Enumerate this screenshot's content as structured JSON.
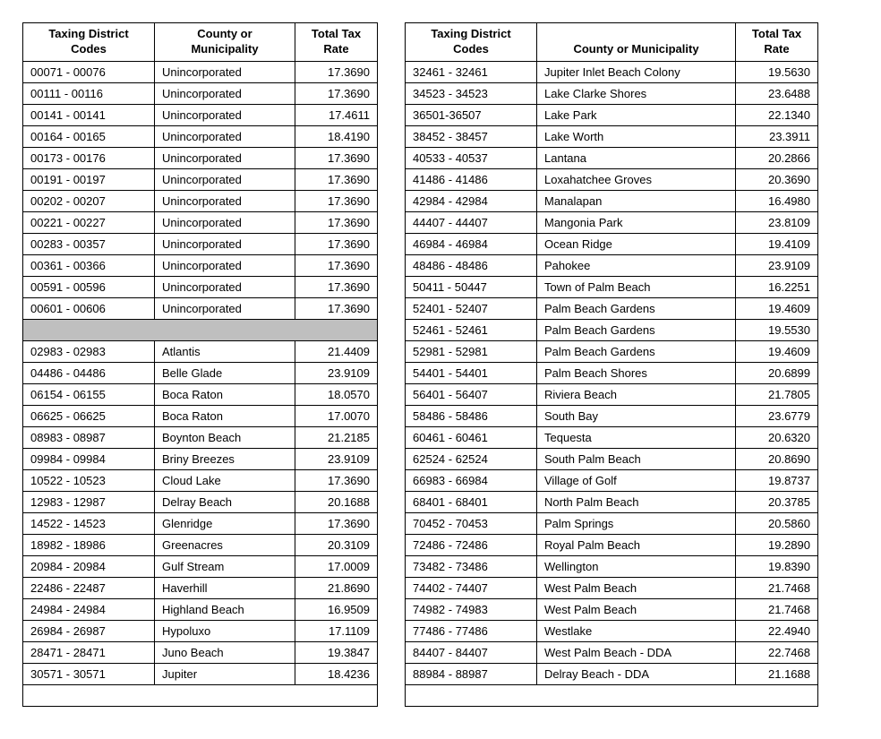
{
  "leftTable": {
    "headers": [
      "Taxing District Codes",
      "County or Municipality",
      "Total Tax Rate"
    ],
    "rows": [
      {
        "code": "00071 - 00076",
        "muni": "Unincorporated",
        "rate": "17.3690"
      },
      {
        "code": "00111 - 00116",
        "muni": "Unincorporated",
        "rate": "17.3690"
      },
      {
        "code": "00141 - 00141",
        "muni": "Unincorporated",
        "rate": "17.4611"
      },
      {
        "code": "00164 - 00165",
        "muni": "Unincorporated",
        "rate": "18.4190"
      },
      {
        "code": "00173 - 00176",
        "muni": "Unincorporated",
        "rate": "17.3690"
      },
      {
        "code": "00191 - 00197",
        "muni": "Unincorporated",
        "rate": "17.3690"
      },
      {
        "code": "00202 - 00207",
        "muni": "Unincorporated",
        "rate": "17.3690"
      },
      {
        "code": "00221 - 00227",
        "muni": "Unincorporated",
        "rate": "17.3690"
      },
      {
        "code": "00283 - 00357",
        "muni": "Unincorporated",
        "rate": "17.3690"
      },
      {
        "code": "00361 - 00366",
        "muni": "Unincorporated",
        "rate": "17.3690"
      },
      {
        "code": "00591 - 00596",
        "muni": "Unincorporated",
        "rate": "17.3690"
      },
      {
        "code": "00601 - 00606",
        "muni": "Unincorporated",
        "rate": "17.3690"
      }
    ],
    "rows2": [
      {
        "code": "02983 - 02983",
        "muni": "Atlantis",
        "rate": "21.4409"
      },
      {
        "code": "04486 - 04486",
        "muni": "Belle Glade",
        "rate": "23.9109"
      },
      {
        "code": "06154 - 06155",
        "muni": "Boca Raton",
        "rate": "18.0570"
      },
      {
        "code": "06625 - 06625",
        "muni": "Boca Raton",
        "rate": "17.0070"
      },
      {
        "code": "08983 - 08987",
        "muni": "Boynton Beach",
        "rate": "21.2185"
      },
      {
        "code": "09984 - 09984",
        "muni": "Briny Breezes",
        "rate": "23.9109"
      },
      {
        "code": "10522 - 10523",
        "muni": "Cloud Lake",
        "rate": "17.3690"
      },
      {
        "code": "12983 - 12987",
        "muni": "Delray Beach",
        "rate": "20.1688"
      },
      {
        "code": "14522 - 14523",
        "muni": "Glenridge",
        "rate": "17.3690"
      },
      {
        "code": "18982 - 18986",
        "muni": "Greenacres",
        "rate": "20.3109"
      },
      {
        "code": "20984 - 20984",
        "muni": "Gulf Stream",
        "rate": "17.0009"
      },
      {
        "code": "22486 - 22487",
        "muni": "Haverhill",
        "rate": "21.8690"
      },
      {
        "code": "24984 - 24984",
        "muni": "Highland Beach",
        "rate": "16.9509"
      },
      {
        "code": "26984 - 26987",
        "muni": "Hypoluxo",
        "rate": "17.1109"
      },
      {
        "code": "28471 - 28471",
        "muni": "Juno Beach",
        "rate": "19.3847"
      },
      {
        "code": "30571 - 30571",
        "muni": "Jupiter",
        "rate": "18.4236"
      }
    ]
  },
  "rightTable": {
    "headers": [
      "Taxing District Codes",
      "County or Municipality",
      "Total Tax Rate"
    ],
    "rows": [
      {
        "code": "32461 - 32461",
        "muni": "Jupiter Inlet Beach Colony",
        "rate": "19.5630"
      },
      {
        "code": "34523 - 34523",
        "muni": "Lake Clarke Shores",
        "rate": "23.6488"
      },
      {
        "code": "36501-36507",
        "muni": "Lake Park",
        "rate": "22.1340"
      },
      {
        "code": "38452 - 38457",
        "muni": "Lake Worth",
        "rate": "23.3911"
      },
      {
        "code": "40533 - 40537",
        "muni": "Lantana",
        "rate": "20.2866"
      },
      {
        "code": "41486 - 41486",
        "muni": "Loxahatchee Groves",
        "rate": "20.3690"
      },
      {
        "code": "42984 - 42984",
        "muni": "Manalapan",
        "rate": "16.4980"
      },
      {
        "code": "44407 - 44407",
        "muni": "Mangonia Park",
        "rate": "23.8109"
      },
      {
        "code": "46984 - 46984",
        "muni": "Ocean Ridge",
        "rate": "19.4109"
      },
      {
        "code": "48486 - 48486",
        "muni": "Pahokee",
        "rate": "23.9109"
      },
      {
        "code": "50411 - 50447",
        "muni": "Town of Palm Beach",
        "rate": "16.2251"
      },
      {
        "code": "52401 - 52407",
        "muni": "Palm Beach Gardens",
        "rate": "19.4609"
      },
      {
        "code": "52461 - 52461",
        "muni": "Palm Beach Gardens",
        "rate": "19.5530"
      },
      {
        "code": "52981 - 52981",
        "muni": "Palm Beach Gardens",
        "rate": "19.4609"
      },
      {
        "code": "54401 - 54401",
        "muni": "Palm Beach Shores",
        "rate": "20.6899"
      },
      {
        "code": "56401 - 56407",
        "muni": "Riviera Beach",
        "rate": "21.7805"
      },
      {
        "code": "58486 - 58486",
        "muni": "South Bay",
        "rate": "23.6779"
      },
      {
        "code": "60461 - 60461",
        "muni": "Tequesta",
        "rate": "20.6320"
      },
      {
        "code": "62524 - 62524",
        "muni": "South Palm Beach",
        "rate": "20.8690"
      },
      {
        "code": "66983 - 66984",
        "muni": "Village of Golf",
        "rate": "19.8737"
      },
      {
        "code": "68401 - 68401",
        "muni": "North Palm Beach",
        "rate": "20.3785"
      },
      {
        "code": "70452 - 70453",
        "muni": "Palm Springs",
        "rate": "20.5860"
      },
      {
        "code": "72486 - 72486",
        "muni": "Royal Palm Beach",
        "rate": "19.2890"
      },
      {
        "code": "73482 - 73486",
        "muni": "Wellington",
        "rate": "19.8390"
      },
      {
        "code": "74402 - 74407",
        "muni": "West Palm Beach",
        "rate": "21.7468"
      },
      {
        "code": "74982 - 74983",
        "muni": "West Palm Beach",
        "rate": "21.7468"
      },
      {
        "code": "77486 - 77486",
        "muni": "Westlake",
        "rate": "22.4940"
      },
      {
        "code": "84407 - 84407",
        "muni": "West Palm Beach - DDA",
        "rate": "22.7468"
      },
      {
        "code": "88984 - 88987",
        "muni": "Delray Beach - DDA",
        "rate": "21.1688"
      }
    ]
  }
}
